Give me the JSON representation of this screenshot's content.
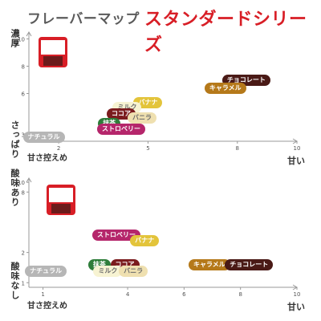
{
  "header": {
    "title_main": "フレーバーマップ",
    "title_series": "スタンダードシリーズ"
  },
  "colors": {
    "accent_red": "#d81e26",
    "axis": "#9a9a9a",
    "grid": "#e6e6e6"
  },
  "charts": [
    {
      "y_axis_top_label": "濃厚",
      "y_axis_bottom_label": "さっぱり",
      "x_axis_left_label": "甘さ控えめ",
      "x_axis_right_label": "甘い",
      "y_ticks": [
        "10",
        "8",
        "6",
        "3"
      ],
      "x_ticks": [
        "2",
        "5",
        "8",
        "10"
      ],
      "items": [
        {
          "label": "チョコレート",
          "x": 8.3,
          "y": 7.0,
          "bg": "#4a1a16",
          "fg": "#ffffff"
        },
        {
          "label": "キャラメル",
          "x": 7.6,
          "y": 6.4,
          "bg": "#b5791a",
          "fg": "#ffffff"
        },
        {
          "label": "バナナ",
          "x": 5.0,
          "y": 5.3,
          "bg": "#e3c43b",
          "fg": "#ffffff"
        },
        {
          "label": "ミルク",
          "x": 4.3,
          "y": 5.0,
          "bg": "#f7f3d2",
          "fg": "#6b6b6b"
        },
        {
          "label": "ココア",
          "x": 4.1,
          "y": 4.5,
          "bg": "#7b1c1e",
          "fg": "#ffffff"
        },
        {
          "label": "バニラ",
          "x": 4.8,
          "y": 4.2,
          "bg": "#efe0b0",
          "fg": "#6b6b6b"
        },
        {
          "label": "抹茶",
          "x": 3.7,
          "y": 3.8,
          "bg": "#2e7d3a",
          "fg": "#ffffff"
        },
        {
          "label": "ストロベリー",
          "x": 4.1,
          "y": 3.4,
          "bg": "#b5266b",
          "fg": "#ffffff"
        },
        {
          "label": "ナチュラル",
          "x": 1.5,
          "y": 2.8,
          "bg": "#b6b6b6",
          "fg": "#ffffff"
        }
      ]
    },
    {
      "y_axis_top_label": "酸味あり",
      "y_axis_bottom_label": "酸味なし",
      "x_axis_left_label": "甘さ控えめ",
      "x_axis_right_label": "甘い",
      "y_ticks": [
        "10",
        "8",
        "2",
        "1"
      ],
      "x_ticks": [
        "1",
        "4",
        "6",
        "8",
        "10"
      ],
      "items": [
        {
          "label": "ストロベリー",
          "x": 3.6,
          "y": 3.0,
          "bg": "#b5266b",
          "fg": "#ffffff"
        },
        {
          "label": "バナナ",
          "x": 4.6,
          "y": 2.6,
          "bg": "#e3c43b",
          "fg": "#ffffff"
        },
        {
          "label": "キャラメル",
          "x": 6.9,
          "y": 1.5,
          "bg": "#b5791a",
          "fg": "#ffffff"
        },
        {
          "label": "チョコレート",
          "x": 8.3,
          "y": 1.5,
          "bg": "#4a1a16",
          "fg": "#ffffff"
        },
        {
          "label": "抹茶",
          "x": 3.0,
          "y": 1.5,
          "bg": "#2e7d3a",
          "fg": "#ffffff"
        },
        {
          "label": "ココア",
          "x": 3.9,
          "y": 1.5,
          "bg": "#7b1c1e",
          "fg": "#ffffff"
        },
        {
          "label": "ミルク",
          "x": 3.3,
          "y": 1.3,
          "bg": "#f7f3d2",
          "fg": "#6b6b6b"
        },
        {
          "label": "バニラ",
          "x": 4.2,
          "y": 1.3,
          "bg": "#efe0b0",
          "fg": "#6b6b6b"
        },
        {
          "label": "ナチュラル",
          "x": 1.1,
          "y": 1.3,
          "bg": "#b6b6b6",
          "fg": "#ffffff"
        }
      ]
    }
  ]
}
